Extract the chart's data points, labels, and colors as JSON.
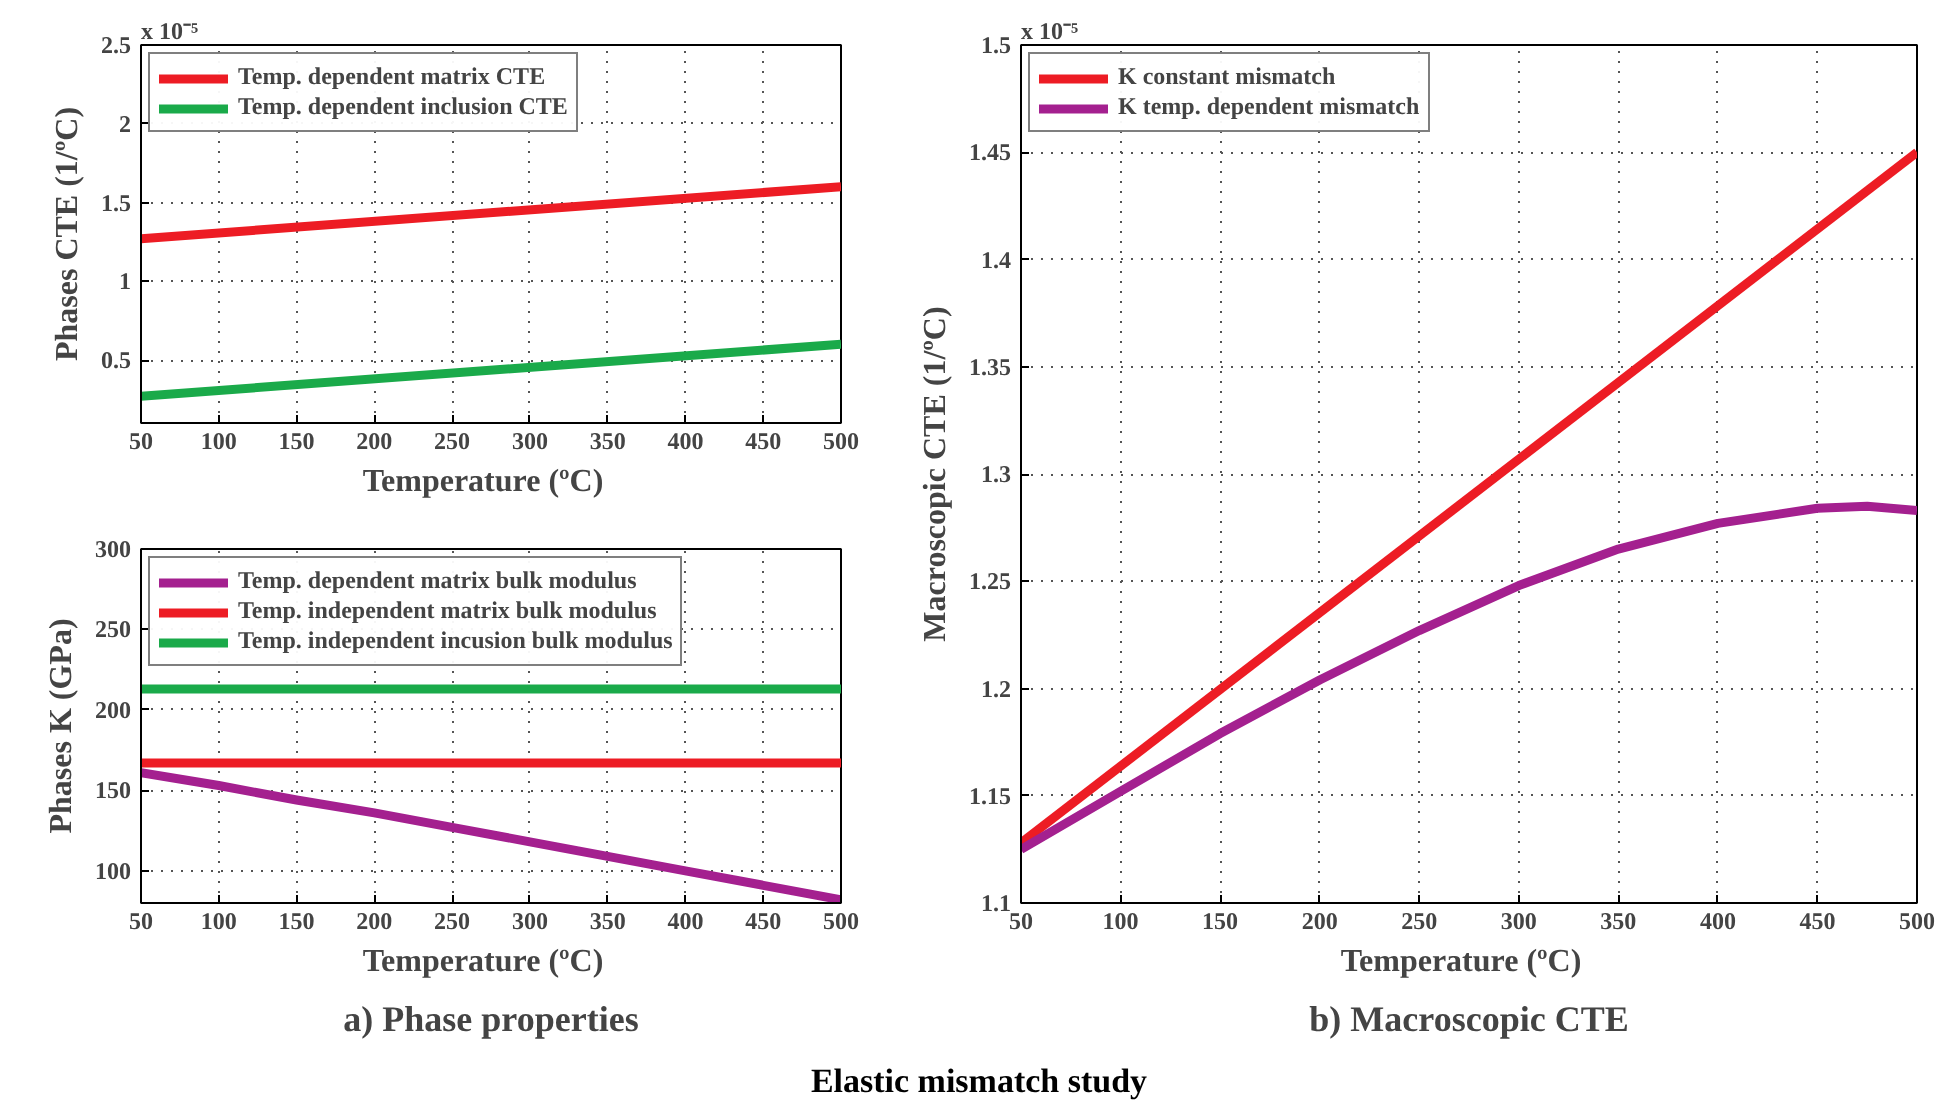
{
  "chart_data": [
    {
      "type": "line",
      "xlabel": "Temperature   (ºC)",
      "ylabel": "Phases CTE (1/ºC)",
      "x": [
        50,
        500
      ],
      "xlim": [
        50,
        500
      ],
      "xticks": [
        50,
        100,
        150,
        200,
        250,
        300,
        350,
        400,
        450,
        500
      ],
      "ylim": [
        0.1,
        2.5
      ],
      "yticks": [
        0.5,
        1,
        1.5,
        2,
        2.5
      ],
      "grid": true,
      "legend": "top left",
      "annotations": [
        "x 10⁻⁵"
      ],
      "series": [
        {
          "name": "Temp. dependent matrix CTE",
          "color": "#ed1c24",
          "values": [
            1.27,
            1.6
          ]
        },
        {
          "name": "Temp. dependent inclusion CTE",
          "color": "#1aaa4a",
          "values": [
            0.27,
            0.6
          ]
        }
      ]
    },
    {
      "type": "line",
      "title": "a) Phase properties",
      "xlabel": "Temperature   (ºC)",
      "ylabel": "Phases K (GPa)",
      "x": [
        50,
        100,
        150,
        200,
        250,
        300,
        350,
        400,
        450,
        500
      ],
      "xlim": [
        50,
        500
      ],
      "xticks": [
        50,
        100,
        150,
        200,
        250,
        300,
        350,
        400,
        450,
        500
      ],
      "ylim": [
        80,
        300
      ],
      "yticks": [
        100,
        150,
        200,
        250,
        300
      ],
      "grid": true,
      "legend": "top left",
      "series": [
        {
          "name": "Temp. dependent matrix bulk modulus",
          "color": "#a4208f",
          "values": [
            161,
            153,
            144,
            136,
            127,
            118,
            109,
            100,
            91,
            82
          ]
        },
        {
          "name": "Temp. independent matrix bulk modulus",
          "color": "#ed1c24",
          "values": [
            167,
            167,
            167,
            167,
            167,
            167,
            167,
            167,
            167,
            167
          ]
        },
        {
          "name": "Temp. independent incusion bulk modulus",
          "color": "#1aaa4a",
          "values": [
            213,
            213,
            213,
            213,
            213,
            213,
            213,
            213,
            213,
            213
          ]
        }
      ]
    },
    {
      "type": "line",
      "title": "b) Macroscopic CTE",
      "xlabel": "Temperature   (ºC)",
      "ylabel": "Macroscopic CTE (1/ºC)",
      "xlim": [
        50,
        500
      ],
      "xticks": [
        50,
        100,
        150,
        200,
        250,
        300,
        350,
        400,
        450,
        500
      ],
      "ylim": [
        1.1,
        1.5
      ],
      "yticks": [
        1.1,
        1.15,
        1.2,
        1.25,
        1.3,
        1.35,
        1.4,
        1.45,
        1.5
      ],
      "grid": true,
      "legend": "top left",
      "annotations": [
        "x 10⁻⁵",
        "Elastic mismatch study"
      ],
      "series": [
        {
          "name": "K constant mismatch",
          "color": "#ed1c24",
          "x": [
            50,
            500
          ],
          "values": [
            1.128,
            1.45
          ]
        },
        {
          "name": "K temp. dependent mismatch",
          "color": "#a4208f",
          "x": [
            50,
            100,
            150,
            200,
            250,
            300,
            350,
            400,
            450,
            475,
            500
          ],
          "values": [
            1.125,
            1.152,
            1.179,
            1.204,
            1.227,
            1.248,
            1.265,
            1.277,
            1.284,
            1.285,
            1.283
          ]
        }
      ]
    }
  ]
}
